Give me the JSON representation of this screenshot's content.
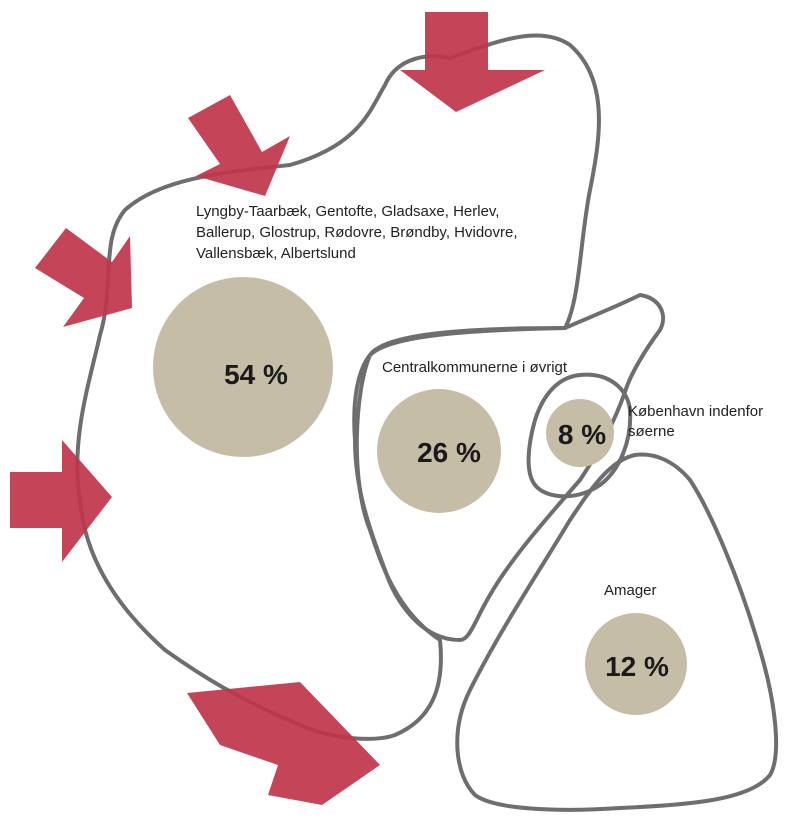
{
  "colors": {
    "outline": "#6e6e6e",
    "bubble": "#c6bda7",
    "arrow": "#c0354a",
    "text": "#222222"
  },
  "regions": [
    {
      "id": "outer",
      "label_lines": [
        "Lyngby-Taarbæk, Gentofte, Gladsaxe, Herlev,",
        "Ballerup, Glostrup, Rødovre, Brøndby, Hvidovre,",
        "Vallensbæk, Albertslund"
      ],
      "share": 54,
      "share_label": "54 %"
    },
    {
      "id": "central",
      "label_lines": [
        "Centralkommunerne i øvrigt"
      ],
      "share": 26,
      "share_label": "26 %"
    },
    {
      "id": "inner",
      "label_lines": [
        "København indenfor",
        "søerne"
      ],
      "share": 8,
      "share_label": "8 %"
    },
    {
      "id": "amager",
      "label_lines": [
        "Amager"
      ],
      "share": 12,
      "share_label": "12 %"
    }
  ],
  "arrows": [
    {
      "id": "arrow-top",
      "direction": "down"
    },
    {
      "id": "arrow-upper-left",
      "direction": "down-right"
    },
    {
      "id": "arrow-left-upper",
      "direction": "right"
    },
    {
      "id": "arrow-left",
      "direction": "right"
    },
    {
      "id": "arrow-bottom",
      "direction": "up-right"
    }
  ]
}
